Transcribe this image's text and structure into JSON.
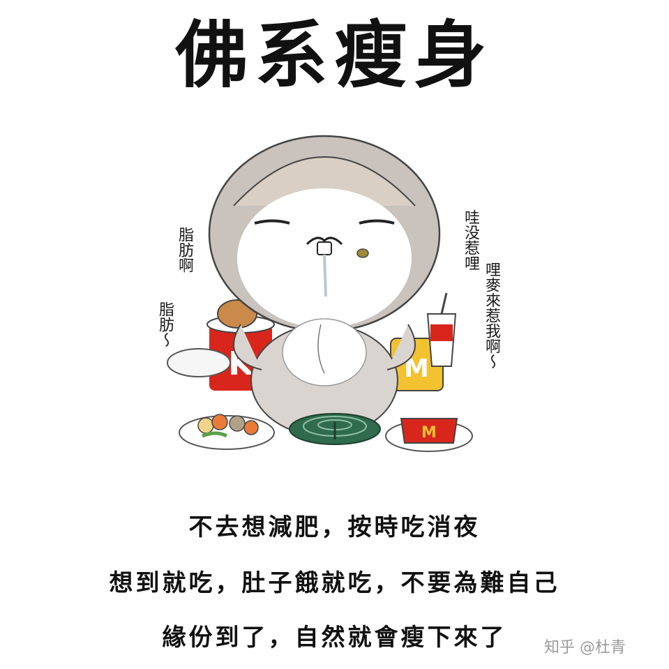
{
  "title": "佛系瘦身",
  "bubbles": {
    "left_top": "脂肪啊",
    "left_bottom": "脂肪～",
    "right_top": "哇没惹哩",
    "right_bottom": "哩麥來惹我啊～"
  },
  "food_logos": {
    "kfc": "K",
    "mcd": "M"
  },
  "captions": [
    "不去想減肥，按時吃消夜",
    "想到就吃，肚子餓就吃，不要為難自己",
    "緣份到了，自然就會瘦下來了"
  ],
  "watermark": "知乎 @杜青",
  "colors": {
    "rabbit_fur": "#c9c2bd",
    "rabbit_face": "#ffffff",
    "kfc_red": "#d8261d",
    "mcd_yellow": "#f2c230",
    "mcd_red": "#d8261d",
    "coil_green": "#2f6b4c",
    "plate": "#ffffff"
  }
}
